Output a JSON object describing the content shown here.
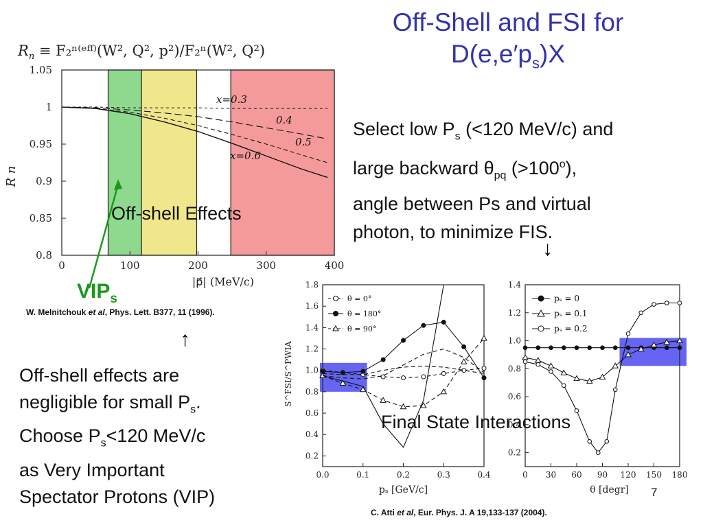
{
  "title": {
    "line1": "Off-Shell and FSI for",
    "line2_pre": "D(e,e′p",
    "line2_sub": "s",
    "line2_post": ")X"
  },
  "formula": {
    "lhs": "R",
    "lhs_sub": "n",
    "rhs": " ≡ F₂ⁿ⁽ᵉᶠᶠ⁾(W², Q², p²)/F₂ⁿ(W², Q²)"
  },
  "select_text": {
    "l1_pre": "Select low P",
    "l1_sub": "s",
    "l1_post": " (<120 MeV/c) and",
    "l2_pre": "large backward θ",
    "l2_sub": "pq",
    "l2_mid": " (>100",
    "l2_sup": "o",
    "l2_post": "),",
    "l3": "angle between Ps and virtual",
    "l4": "photon, to minimize FIS."
  },
  "arrows": {
    "down": "↓",
    "up": "↑"
  },
  "offshell_text": {
    "l1": "Off-shell effects are",
    "l2_pre": "negligible for small P",
    "l2_sub": "s",
    "l2_post": ".",
    "l3_pre": "Choose P",
    "l3_sub": "s",
    "l3_post": "<120 MeV/c",
    "l4": "as Very Important",
    "l5": "Spectator Protons (VIP)"
  },
  "vip_label": {
    "main": "VIP",
    "sub": "s"
  },
  "citations": {
    "melnitchouk": {
      "author": "W. Melnitchouk ",
      "etal": "et al",
      "rest": ", Phys. Lett. B377, 11 (1996)."
    },
    "atti": {
      "author": "C. Atti ",
      "etal": "et al",
      "rest": ", Eur. Phys. J. A 19,133-137 (2004)."
    }
  },
  "overlays": {
    "offshell": "Off-shell Effects",
    "fsi": "Final State Interactions"
  },
  "slide_number": "7",
  "colors": {
    "title": "#3333aa",
    "green_band": "#8fd98f",
    "yellow_band": "#f0e68c",
    "red_band": "#f59a9a",
    "blue_band": "#4a4af0",
    "vip": "#1a9a1a"
  },
  "chart_data": [
    {
      "type": "line",
      "xlabel": "|p⃗|   (MeV/c)",
      "ylabel": "R n",
      "xlim": [
        0,
        400
      ],
      "ylim": [
        0.8,
        1.05
      ],
      "xticks": [
        "0",
        "100",
        "200",
        "300",
        "400"
      ],
      "yticks": [
        "0.8",
        "0.85",
        "0.9",
        "0.95",
        "1",
        "1.05"
      ],
      "bands": [
        {
          "color": "green",
          "x": [
            68,
            117
          ]
        },
        {
          "color": "yellow",
          "x": [
            117,
            198
          ]
        },
        {
          "color": "red",
          "x": [
            248,
            400
          ]
        }
      ],
      "series": [
        {
          "name": "x=0.3",
          "x": [
            0,
            50,
            100,
            150,
            200,
            250,
            300,
            350,
            390
          ],
          "y": [
            1.0,
            1.0,
            0.999,
            0.999,
            0.999,
            0.998,
            0.998,
            0.998,
            0.998
          ]
        },
        {
          "name": "0.4",
          "x": [
            0,
            50,
            100,
            150,
            200,
            250,
            300,
            350,
            390
          ],
          "y": [
            1.0,
            0.999,
            0.996,
            0.992,
            0.987,
            0.98,
            0.972,
            0.964,
            0.957
          ]
        },
        {
          "name": "0.5",
          "x": [
            0,
            50,
            100,
            150,
            200,
            250,
            300,
            350,
            390
          ],
          "y": [
            1.0,
            0.998,
            0.993,
            0.985,
            0.975,
            0.963,
            0.95,
            0.936,
            0.925
          ]
        },
        {
          "name": "x=0.6",
          "x": [
            0,
            50,
            100,
            150,
            200,
            250,
            300,
            350,
            390
          ],
          "y": [
            1.0,
            0.998,
            0.991,
            0.98,
            0.967,
            0.951,
            0.934,
            0.917,
            0.905
          ]
        }
      ]
    },
    {
      "type": "line",
      "xlabel": "pₛ [GeV/c]",
      "ylabel": "S^FSI/S^PWIA",
      "xlim": [
        0.0,
        0.4
      ],
      "ylim": [
        0.1,
        1.8
      ],
      "xticks": [
        "0.0",
        "0.1",
        "0.2",
        "0.3",
        "0.4"
      ],
      "yticks": [
        "0.2",
        "0.4",
        "0.6",
        "0.8",
        "1.0",
        "1.2",
        "1.4",
        "1.6",
        "1.8"
      ],
      "band": {
        "x": [
          0.0,
          0.11
        ],
        "y": [
          0.8,
          1.07
        ]
      },
      "legend": [
        "θ = 0°",
        "θ = 180°",
        "θ = 90°"
      ],
      "series": [
        {
          "name": "θ = 0°",
          "x": [
            0.0,
            0.05,
            0.1,
            0.15,
            0.2,
            0.25,
            0.3,
            0.35,
            0.4
          ],
          "y": [
            1.0,
            0.98,
            0.96,
            0.94,
            0.93,
            0.94,
            0.97,
            1.0,
            1.02
          ]
        },
        {
          "name": "θ = 180°",
          "x": [
            0.0,
            0.05,
            0.1,
            0.15,
            0.2,
            0.25,
            0.3,
            0.35,
            0.4
          ],
          "y": [
            0.99,
            0.98,
            0.99,
            1.1,
            1.28,
            1.42,
            1.45,
            1.22,
            0.93
          ]
        },
        {
          "name": "θ = 90°",
          "x": [
            0.0,
            0.05,
            0.1,
            0.15,
            0.2,
            0.25,
            0.3,
            0.35,
            0.4
          ],
          "y": [
            0.95,
            0.88,
            0.82,
            0.72,
            0.66,
            0.67,
            0.8,
            1.08,
            1.3
          ]
        },
        {
          "name": "",
          "x": [
            0.0,
            0.05,
            0.1,
            0.15,
            0.2,
            0.25,
            0.3
          ],
          "y": [
            0.95,
            0.9,
            0.85,
            0.5,
            0.28,
            0.72,
            1.8
          ]
        },
        {
          "name": "",
          "x": [
            0.0,
            0.05,
            0.1,
            0.15,
            0.2,
            0.25,
            0.3,
            0.35,
            0.4
          ],
          "y": [
            0.97,
            0.96,
            0.96,
            1.0,
            1.03,
            1.04,
            1.03,
            1.0,
            0.97
          ]
        },
        {
          "name": "",
          "x": [
            0.0,
            0.05,
            0.1,
            0.15,
            0.2,
            0.25,
            0.3,
            0.35,
            0.4
          ],
          "y": [
            0.95,
            0.93,
            0.92,
            0.95,
            1.05,
            1.15,
            1.2,
            1.12,
            0.98
          ]
        }
      ]
    },
    {
      "type": "line",
      "xlabel": "θ [degr]",
      "ylabel": "",
      "xlim": [
        0,
        180
      ],
      "ylim": [
        0.1,
        1.4
      ],
      "xticks": [
        "0",
        "30",
        "60",
        "90",
        "120",
        "150",
        "180"
      ],
      "yticks": [
        "0.2",
        "0.4",
        "0.6",
        "0.8",
        "1.0",
        "1.2",
        "1.4"
      ],
      "band": {
        "x": [
          110,
          180
        ],
        "y": [
          0.82,
          1.02
        ]
      },
      "legend": [
        "pₛ = 0",
        "pₛ = 0.1",
        "pₛ = 0.2"
      ],
      "series": [
        {
          "name": "pₛ = 0",
          "x": [
            0,
            15,
            30,
            45,
            60,
            75,
            90,
            105,
            120,
            135,
            150,
            165,
            180
          ],
          "y": [
            0.95,
            0.95,
            0.95,
            0.95,
            0.95,
            0.95,
            0.95,
            0.95,
            0.95,
            0.95,
            0.95,
            0.95,
            0.95
          ]
        },
        {
          "name": "pₛ = 0.1",
          "x": [
            0,
            15,
            30,
            45,
            60,
            75,
            90,
            105,
            120,
            135,
            150,
            165,
            180
          ],
          "y": [
            0.88,
            0.86,
            0.82,
            0.77,
            0.73,
            0.71,
            0.74,
            0.82,
            0.9,
            0.94,
            0.97,
            0.99,
            1.0
          ]
        },
        {
          "name": "pₛ = 0.2",
          "x": [
            0,
            15,
            30,
            45,
            60,
            75,
            85,
            95,
            105,
            120,
            135,
            150,
            165,
            180
          ],
          "y": [
            0.85,
            0.83,
            0.78,
            0.68,
            0.5,
            0.28,
            0.2,
            0.28,
            0.65,
            1.05,
            1.2,
            1.26,
            1.27,
            1.27
          ]
        }
      ]
    }
  ]
}
